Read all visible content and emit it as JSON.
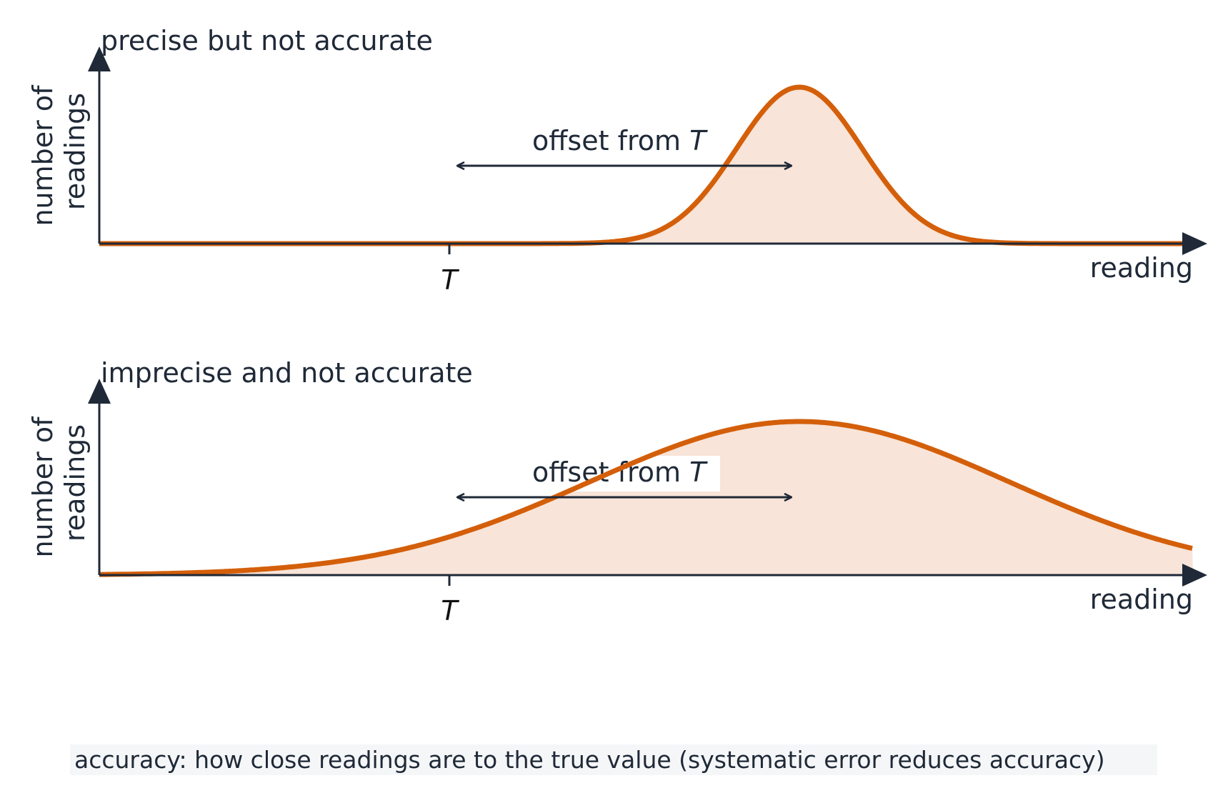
{
  "colors": {
    "curve": "#d45f0a",
    "fill": "#f8e4d8",
    "axis": "#1f2937",
    "caption_bg": "#f5f6f8"
  },
  "panels": [
    {
      "title": "precise but not accurate",
      "ylabel_line1": "number of",
      "ylabel_line2": "readings",
      "xlabel": "reading",
      "true_value_label": "T",
      "offset_label_text": "offset from ",
      "offset_label_var": "T",
      "curve": {
        "mean": 1.0,
        "sd": 0.18
      }
    },
    {
      "title": "imprecise and not accurate",
      "ylabel_line1": "number of",
      "ylabel_line2": "readings",
      "xlabel": "reading",
      "true_value_label": "T",
      "offset_label_text": "offset from ",
      "offset_label_var": "T",
      "curve": {
        "mean": 1.0,
        "sd": 0.6
      }
    }
  ],
  "caption": "accuracy: how close readings are to the true value (systematic error reduces accuracy)"
}
